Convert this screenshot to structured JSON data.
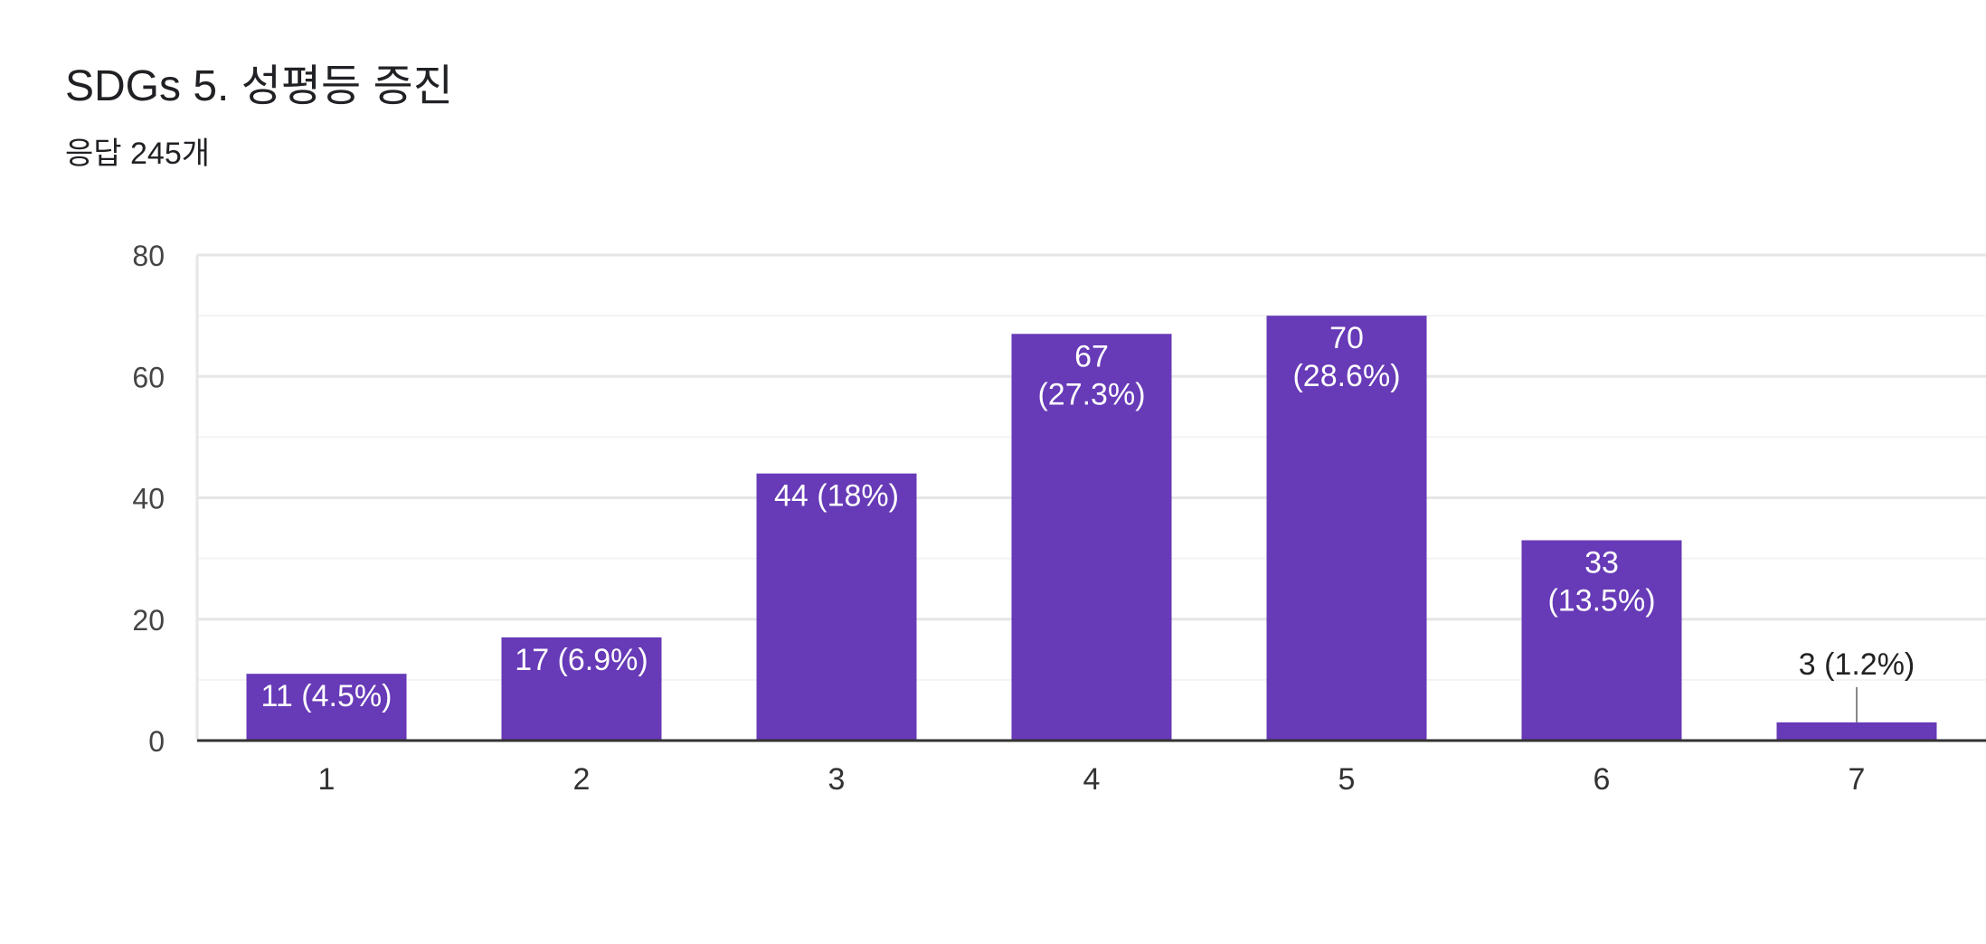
{
  "header": {
    "title": "SDGs 5. 성평등 증진",
    "subtitle": "응답 245개"
  },
  "colors": {
    "bar": "#673ab7",
    "label_inside": "#ffffff",
    "label_outside": "#222222",
    "grid_major": "#e6e6e6",
    "grid_minor": "#f3f3f3",
    "axis": "#333333",
    "tick_text": "#444444"
  },
  "chart_data": {
    "type": "bar",
    "title": "",
    "xlabel": "",
    "ylabel": "",
    "categories": [
      "1",
      "2",
      "3",
      "4",
      "5",
      "6",
      "7"
    ],
    "values": [
      11,
      17,
      44,
      67,
      70,
      33,
      3
    ],
    "percents": [
      "4.5%",
      "6.9%",
      "18%",
      "27.3%",
      "28.6%",
      "13.5%",
      "1.2%"
    ],
    "data_labels": [
      [
        "11 (4.5%)"
      ],
      [
        "17 (6.9%)"
      ],
      [
        "44 (18%)"
      ],
      [
        "67",
        "(27.3%)"
      ],
      [
        "70",
        "(28.6%)"
      ],
      [
        "33",
        "(13.5%)"
      ],
      [
        "3 (1.2%)"
      ]
    ],
    "ylim": [
      0,
      80
    ],
    "yticks": [
      0,
      20,
      40,
      60,
      80
    ],
    "grid": true,
    "legend": "none"
  }
}
